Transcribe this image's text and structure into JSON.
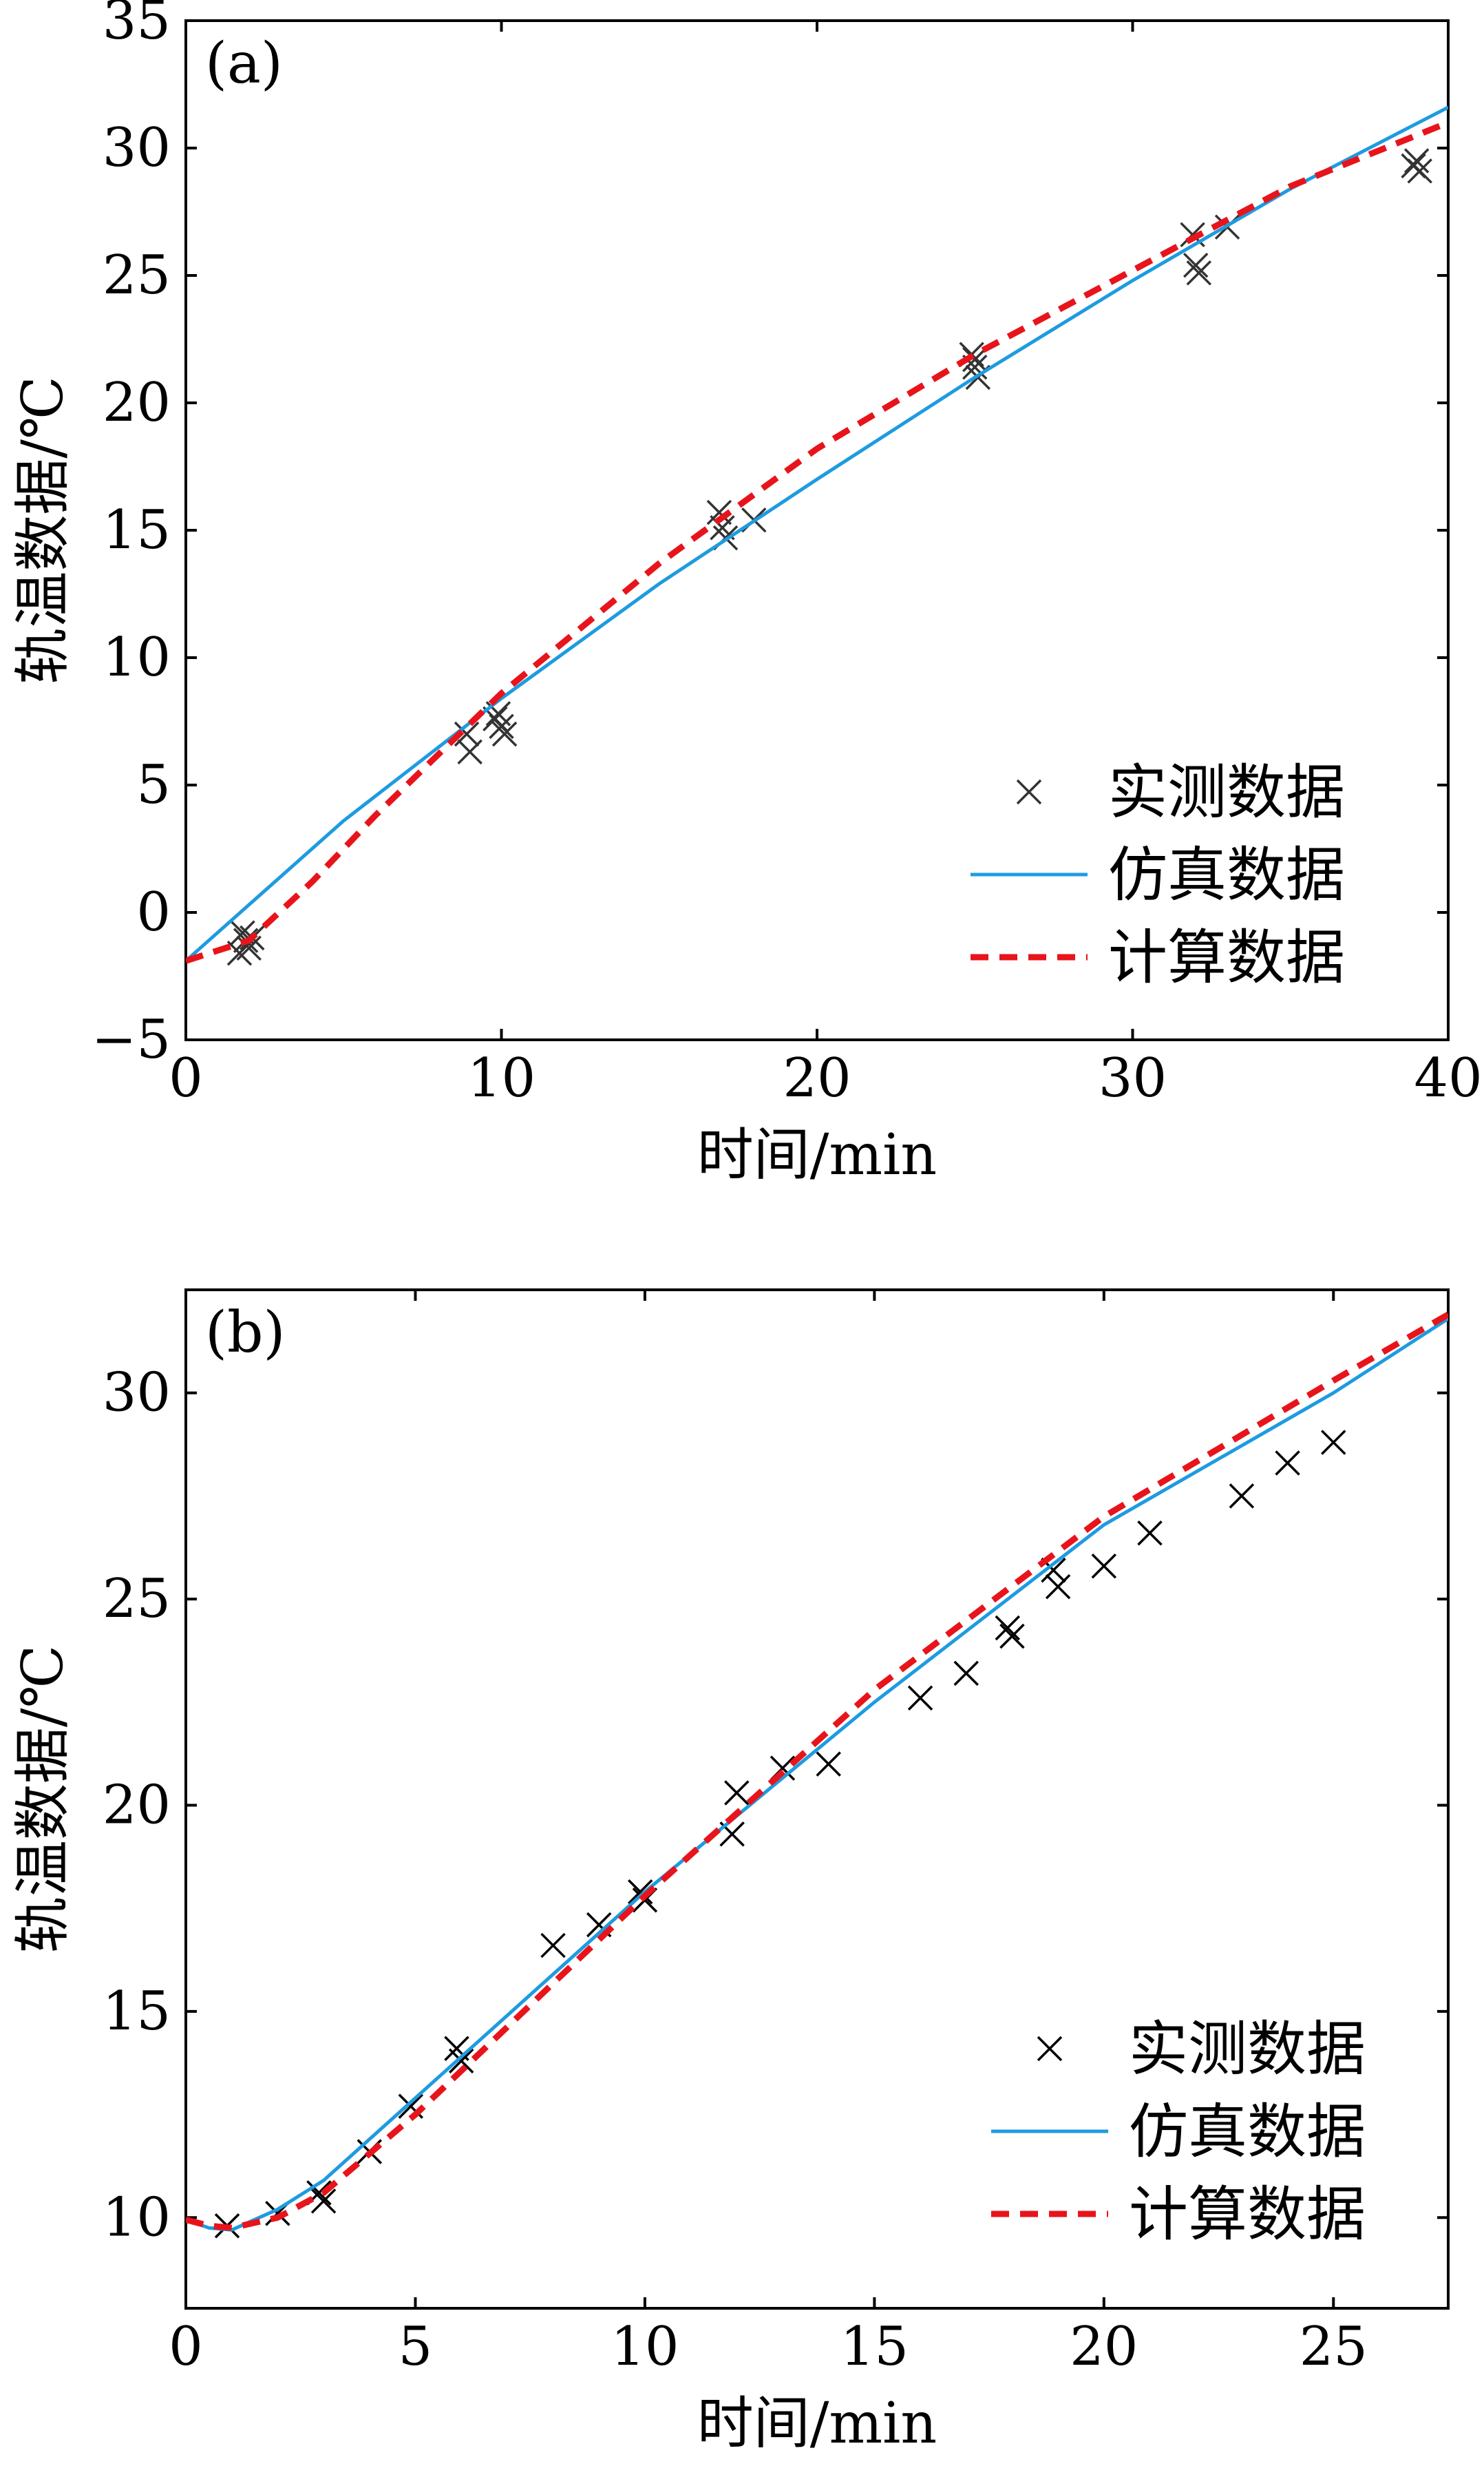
{
  "chart_data": [
    {
      "type": "line",
      "panel_label": "(a)",
      "xlabel": "时间/min",
      "ylabel": "轨温数据/℃",
      "xlim": [
        0,
        40
      ],
      "ylim": [
        -5,
        35
      ],
      "xticks": [
        0,
        10,
        20,
        30,
        40
      ],
      "yticks": [
        -5,
        0,
        5,
        10,
        15,
        20,
        25,
        30,
        35
      ],
      "legend": {
        "position": "bottom-right",
        "entries": [
          "实测数据",
          "仿真数据",
          "计算数据"
        ]
      },
      "series": [
        {
          "name": "实测数据",
          "style": "x-marker",
          "color": "#333333",
          "points": [
            [
              1.8,
              -0.8
            ],
            [
              1.9,
              -1.1
            ],
            [
              2.0,
              -1.4
            ],
            [
              1.7,
              -1.6
            ],
            [
              2.1,
              -1.0
            ],
            [
              8.9,
              7.0
            ],
            [
              9.0,
              6.3
            ],
            [
              9.9,
              7.8
            ],
            [
              10.0,
              7.3
            ],
            [
              10.1,
              7.0
            ],
            [
              9.8,
              7.6
            ],
            [
              16.9,
              15.7
            ],
            [
              17.0,
              15.1
            ],
            [
              17.1,
              14.7
            ],
            [
              18.0,
              15.4
            ],
            [
              24.9,
              21.9
            ],
            [
              25.0,
              21.4
            ],
            [
              25.1,
              21.0
            ],
            [
              25.0,
              21.7
            ],
            [
              31.9,
              26.6
            ],
            [
              32.0,
              25.4
            ],
            [
              32.1,
              25.1
            ],
            [
              33.0,
              26.9
            ],
            [
              39.0,
              29.5
            ],
            [
              39.1,
              29.1
            ],
            [
              38.9,
              29.3
            ]
          ]
        },
        {
          "name": "仿真数据",
          "style": "solid",
          "color": "#1e9be0",
          "x": [
            0,
            2,
            5,
            10,
            15,
            20,
            25,
            30,
            35,
            40
          ],
          "y": [
            -1.9,
            0.3,
            3.6,
            8.4,
            12.9,
            17.0,
            21.0,
            24.8,
            28.4,
            31.6
          ]
        },
        {
          "name": "计算数据",
          "style": "dashed",
          "color": "#e8141b",
          "x": [
            0,
            2,
            4,
            6,
            10,
            15,
            20,
            25,
            30,
            35,
            40
          ],
          "y": [
            -1.9,
            -1.1,
            1.2,
            3.8,
            8.6,
            13.7,
            18.2,
            21.9,
            25.2,
            28.5,
            31.0
          ]
        }
      ]
    },
    {
      "type": "line",
      "panel_label": "(b)",
      "xlabel": "时间/min",
      "ylabel": "轨温数据/℃",
      "xlim": [
        0,
        27.5
      ],
      "ylim": [
        7.8,
        32.5
      ],
      "xticks": [
        0,
        5,
        10,
        15,
        20,
        25
      ],
      "yticks": [
        10,
        15,
        20,
        25,
        30
      ],
      "legend": {
        "position": "bottom-right",
        "entries": [
          "实测数据",
          "仿真数据",
          "计算数据"
        ]
      },
      "series": [
        {
          "name": "实测数据",
          "style": "x-marker",
          "color": "#000000",
          "points": [
            [
              0.9,
              9.8
            ],
            [
              2.0,
              10.1
            ],
            [
              2.9,
              10.6
            ],
            [
              3.0,
              10.4
            ],
            [
              4.0,
              11.6
            ],
            [
              4.9,
              12.7
            ],
            [
              5.9,
              14.1
            ],
            [
              6.0,
              13.8
            ],
            [
              8.0,
              16.6
            ],
            [
              9.0,
              17.1
            ],
            [
              9.9,
              17.9
            ],
            [
              10.0,
              17.7
            ],
            [
              11.9,
              19.3
            ],
            [
              12.0,
              20.3
            ],
            [
              13.0,
              20.9
            ],
            [
              14.0,
              21.0
            ],
            [
              16.0,
              22.6
            ],
            [
              17.0,
              23.2
            ],
            [
              17.9,
              24.3
            ],
            [
              18.0,
              24.1
            ],
            [
              18.9,
              25.7
            ],
            [
              19.0,
              25.3
            ],
            [
              20.0,
              25.8
            ],
            [
              21.0,
              26.6
            ],
            [
              23.0,
              27.5
            ],
            [
              24.0,
              28.3
            ],
            [
              25.0,
              28.8
            ]
          ]
        },
        {
          "name": "仿真数据",
          "style": "solid",
          "color": "#1e9be0",
          "x": [
            0,
            0.5,
            1,
            2,
            3,
            5,
            10,
            15,
            20,
            25,
            27.5
          ],
          "y": [
            9.95,
            9.75,
            9.7,
            10.2,
            10.9,
            12.9,
            17.9,
            22.5,
            26.8,
            30.0,
            31.8
          ]
        },
        {
          "name": "计算数据",
          "style": "dashed",
          "color": "#e8141b",
          "x": [
            0,
            0.5,
            1,
            2,
            3,
            5,
            10,
            15,
            20,
            25,
            27.5
          ],
          "y": [
            9.95,
            9.8,
            9.75,
            10.0,
            10.6,
            12.5,
            17.8,
            22.8,
            27.0,
            30.3,
            31.9
          ]
        }
      ]
    }
  ]
}
